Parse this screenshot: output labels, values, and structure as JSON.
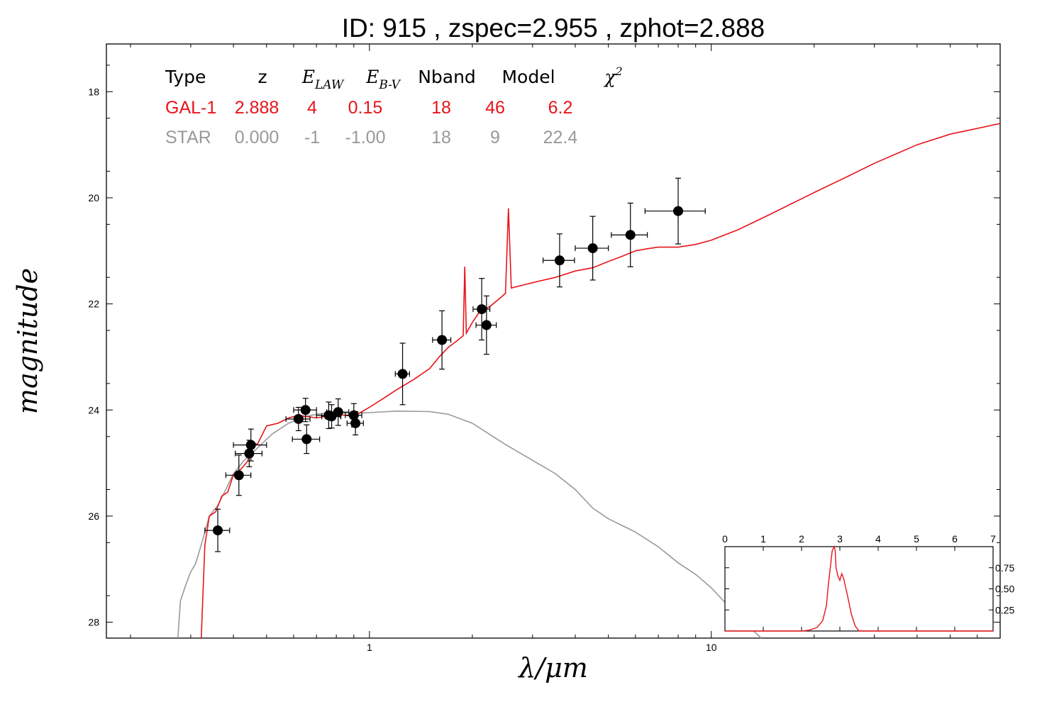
{
  "title": "ID:  915   , zspec=2.955 , zphot=2.888",
  "colors": {
    "galaxy": "#e8141a",
    "star": "#999999",
    "points": "#000000",
    "frame": "#000000"
  },
  "chart_data": {
    "type": "scatter",
    "xlabel": "λ/μm",
    "ylabel": "magnitude",
    "x_scale": "log",
    "xlim": [
      0.17,
      70
    ],
    "ylim": [
      28.3,
      17.1
    ],
    "y_inverted": true,
    "x_tick_labels": [
      "1",
      "10"
    ],
    "y_tick_labels": [
      "18",
      "20",
      "22",
      "24",
      "26",
      "28"
    ],
    "legend_table": {
      "headers": [
        "Type",
        "z",
        "E_LAW",
        "E_B-V",
        "Nband",
        "Model",
        "χ²"
      ],
      "rows": [
        {
          "cells": [
            "GAL-1",
            "2.888",
            "4",
            "0.15",
            "18",
            "46",
            "6.2"
          ],
          "color": "#e8141a"
        },
        {
          "cells": [
            "STAR",
            "0.000",
            "-1",
            "-1.00",
            "18",
            "9",
            "22.4"
          ],
          "color": "#999999"
        }
      ]
    },
    "photometry": [
      {
        "x": 0.36,
        "y": 26.27,
        "xerr": 0.03,
        "yerr": 0.4
      },
      {
        "x": 0.415,
        "y": 25.23,
        "xerr": 0.035,
        "yerr": 0.38
      },
      {
        "x": 0.45,
        "y": 24.66,
        "xerr": 0.05,
        "yerr": 0.3
      },
      {
        "x": 0.445,
        "y": 24.82,
        "xerr": 0.04,
        "yerr": 0.25
      },
      {
        "x": 0.62,
        "y": 24.17,
        "xerr": 0.05,
        "yerr": 0.22
      },
      {
        "x": 0.65,
        "y": 24.0,
        "xerr": 0.05,
        "yerr": 0.22
      },
      {
        "x": 0.655,
        "y": 24.55,
        "xerr": 0.06,
        "yerr": 0.27
      },
      {
        "x": 0.76,
        "y": 24.1,
        "xerr": 0.06,
        "yerr": 0.25
      },
      {
        "x": 0.775,
        "y": 24.12,
        "xerr": 0.05,
        "yerr": 0.22
      },
      {
        "x": 0.81,
        "y": 24.04,
        "xerr": 0.06,
        "yerr": 0.25
      },
      {
        "x": 0.9,
        "y": 24.1,
        "xerr": 0.05,
        "yerr": 0.22
      },
      {
        "x": 0.91,
        "y": 24.25,
        "xerr": 0.05,
        "yerr": 0.22
      },
      {
        "x": 1.25,
        "y": 23.32,
        "xerr": 0.06,
        "yerr": 0.58
      },
      {
        "x": 1.63,
        "y": 22.68,
        "xerr": 0.1,
        "yerr": 0.55
      },
      {
        "x": 2.13,
        "y": 22.1,
        "xerr": 0.12,
        "yerr": 0.58
      },
      {
        "x": 2.2,
        "y": 22.4,
        "xerr": 0.15,
        "yerr": 0.55
      },
      {
        "x": 3.6,
        "y": 21.18,
        "xerr": 0.38,
        "yerr": 0.5
      },
      {
        "x": 4.5,
        "y": 20.95,
        "xerr": 0.5,
        "yerr": 0.6
      },
      {
        "x": 5.8,
        "y": 20.7,
        "xerr": 0.7,
        "yerr": 0.6
      },
      {
        "x": 8.0,
        "y": 20.25,
        "xerr": 1.6,
        "yerr": 0.62
      }
    ],
    "galaxy_model": [
      [
        0.322,
        28.3
      ],
      [
        0.33,
        26.55
      ],
      [
        0.34,
        26.0
      ],
      [
        0.355,
        25.92
      ],
      [
        0.37,
        25.62
      ],
      [
        0.385,
        25.55
      ],
      [
        0.4,
        25.22
      ],
      [
        0.42,
        25.12
      ],
      [
        0.44,
        24.97
      ],
      [
        0.455,
        24.6
      ],
      [
        0.47,
        24.65
      ],
      [
        0.5,
        24.3
      ],
      [
        0.54,
        24.25
      ],
      [
        0.58,
        24.15
      ],
      [
        0.62,
        24.1
      ],
      [
        0.7,
        24.15
      ],
      [
        0.8,
        24.08
      ],
      [
        0.9,
        24.12
      ],
      [
        1.0,
        23.95
      ],
      [
        1.1,
        23.78
      ],
      [
        1.2,
        23.62
      ],
      [
        1.35,
        23.42
      ],
      [
        1.5,
        23.22
      ],
      [
        1.6,
        23.0
      ],
      [
        1.7,
        22.82
      ],
      [
        1.8,
        22.7
      ],
      [
        1.88,
        22.6
      ],
      [
        1.9,
        21.3
      ],
      [
        1.92,
        22.55
      ],
      [
        2.0,
        22.35
      ],
      [
        2.1,
        22.15
      ],
      [
        2.25,
        22.05
      ],
      [
        2.4,
        21.9
      ],
      [
        2.5,
        21.8
      ],
      [
        2.55,
        20.2
      ],
      [
        2.6,
        21.7
      ],
      [
        2.8,
        21.65
      ],
      [
        3.0,
        21.6
      ],
      [
        3.5,
        21.5
      ],
      [
        4.0,
        21.38
      ],
      [
        4.5,
        21.32
      ],
      [
        5.0,
        21.2
      ],
      [
        5.5,
        21.1
      ],
      [
        6.0,
        21.0
      ],
      [
        6.5,
        20.96
      ],
      [
        7.0,
        20.93
      ],
      [
        8.0,
        20.93
      ],
      [
        9.0,
        20.88
      ],
      [
        10.0,
        20.8
      ],
      [
        12.0,
        20.6
      ],
      [
        15.0,
        20.3
      ],
      [
        20.0,
        19.9
      ],
      [
        25.0,
        19.6
      ],
      [
        30.0,
        19.35
      ],
      [
        40.0,
        19.0
      ],
      [
        50.0,
        18.8
      ],
      [
        70.0,
        18.6
      ]
    ],
    "star_model": [
      [
        0.275,
        28.3
      ],
      [
        0.28,
        27.6
      ],
      [
        0.29,
        27.3
      ],
      [
        0.3,
        27.05
      ],
      [
        0.31,
        26.9
      ],
      [
        0.32,
        26.6
      ],
      [
        0.33,
        26.3
      ],
      [
        0.34,
        26.0
      ],
      [
        0.36,
        25.8
      ],
      [
        0.38,
        25.5
      ],
      [
        0.4,
        25.2
      ],
      [
        0.43,
        24.95
      ],
      [
        0.47,
        24.72
      ],
      [
        0.52,
        24.45
      ],
      [
        0.58,
        24.25
      ],
      [
        0.65,
        24.12
      ],
      [
        0.75,
        24.05
      ],
      [
        0.9,
        24.06
      ],
      [
        1.0,
        24.05
      ],
      [
        1.2,
        24.02
      ],
      [
        1.5,
        24.03
      ],
      [
        1.7,
        24.08
      ],
      [
        2.0,
        24.25
      ],
      [
        2.5,
        24.65
      ],
      [
        3.0,
        24.95
      ],
      [
        3.5,
        25.2
      ],
      [
        4.0,
        25.5
      ],
      [
        4.5,
        25.85
      ],
      [
        5.0,
        26.05
      ],
      [
        6.0,
        26.3
      ],
      [
        7.0,
        26.58
      ],
      [
        8.0,
        26.88
      ],
      [
        9.0,
        27.1
      ],
      [
        10.0,
        27.35
      ],
      [
        12.0,
        27.9
      ],
      [
        14.0,
        28.3
      ]
    ],
    "inset": {
      "type": "line",
      "xlim": [
        0,
        7
      ],
      "ylim": [
        0,
        1.0
      ],
      "x_tick_labels": [
        "0",
        "1",
        "2",
        "3",
        "4",
        "5",
        "6",
        "7"
      ],
      "y_tick_labels": [
        "0.25",
        "0.50",
        "0.75"
      ],
      "pdz": [
        [
          0.0,
          0.0
        ],
        [
          2.0,
          0.0
        ],
        [
          2.2,
          0.01
        ],
        [
          2.4,
          0.04
        ],
        [
          2.55,
          0.12
        ],
        [
          2.65,
          0.3
        ],
        [
          2.7,
          0.55
        ],
        [
          2.75,
          0.75
        ],
        [
          2.8,
          0.95
        ],
        [
          2.85,
          1.0
        ],
        [
          2.88,
          0.95
        ],
        [
          2.9,
          0.75
        ],
        [
          2.95,
          0.65
        ],
        [
          3.0,
          0.6
        ],
        [
          3.05,
          0.68
        ],
        [
          3.1,
          0.62
        ],
        [
          3.2,
          0.42
        ],
        [
          3.3,
          0.2
        ],
        [
          3.4,
          0.06
        ],
        [
          3.5,
          0.0
        ],
        [
          7.0,
          0.0
        ]
      ]
    }
  }
}
